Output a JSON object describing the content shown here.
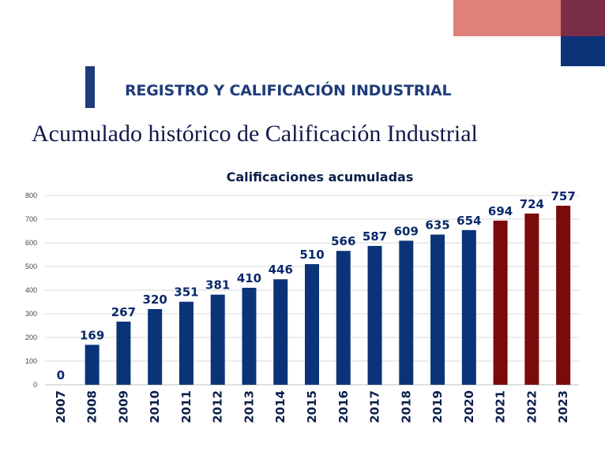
{
  "header": {
    "section_heading": "REGISTRO Y CALIFICACIÓN INDUSTRIAL",
    "slide_title": "Acumulado histórico de Calificación Industrial"
  },
  "colors": {
    "deco_salmon": "#e0807a",
    "deco_maroon": "#7b2e47",
    "deco_navy": "#0b3478",
    "bar_navy": "#0b3478",
    "bar_red": "#7a0b0b",
    "label_text": "#0b2a6b",
    "gridline": "#d9d9d9",
    "tick_text": "#444444"
  },
  "chart_data": {
    "type": "bar",
    "title": "Calificaciones acumuladas",
    "xlabel": "",
    "ylabel": "",
    "ylim": [
      0,
      800
    ],
    "yticks": [
      0,
      100,
      200,
      300,
      400,
      500,
      600,
      700,
      800
    ],
    "grid": true,
    "categories": [
      "2007",
      "2008",
      "2009",
      "2010",
      "2011",
      "2012",
      "2013",
      "2014",
      "2015",
      "2016",
      "2017",
      "2018",
      "2019",
      "2020",
      "2021",
      "2022",
      "2023"
    ],
    "values": [
      0,
      169,
      267,
      320,
      351,
      381,
      410,
      446,
      510,
      566,
      587,
      609,
      635,
      654,
      694,
      724,
      757
    ],
    "bar_colors": [
      "#0b3478",
      "#0b3478",
      "#0b3478",
      "#0b3478",
      "#0b3478",
      "#0b3478",
      "#0b3478",
      "#0b3478",
      "#0b3478",
      "#0b3478",
      "#0b3478",
      "#0b3478",
      "#0b3478",
      "#0b3478",
      "#7a0b0b",
      "#7a0b0b",
      "#7a0b0b"
    ]
  }
}
